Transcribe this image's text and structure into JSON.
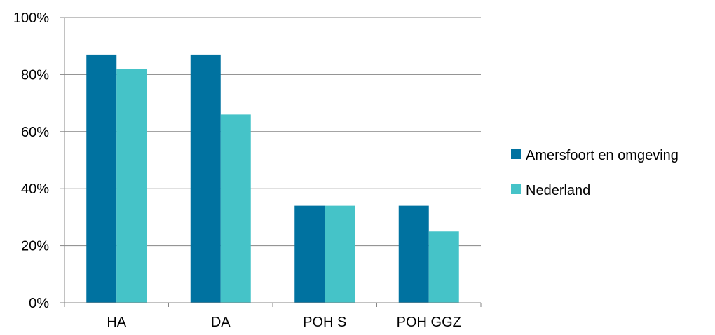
{
  "chart_data": {
    "type": "bar",
    "categories": [
      "HA",
      "DA",
      "POH S",
      "POH GGZ"
    ],
    "series": [
      {
        "name": "Amersfoort en omgeving",
        "color": "#0072A0",
        "values": [
          87,
          87,
          34,
          34
        ]
      },
      {
        "name": "Nederland",
        "color": "#45C3C8",
        "values": [
          82,
          66,
          34,
          25
        ]
      }
    ],
    "y_ticks": [
      "0%",
      "20%",
      "40%",
      "60%",
      "80%",
      "100%"
    ],
    "ylim": [
      0,
      100
    ],
    "grid": true,
    "legend_position": "right"
  }
}
